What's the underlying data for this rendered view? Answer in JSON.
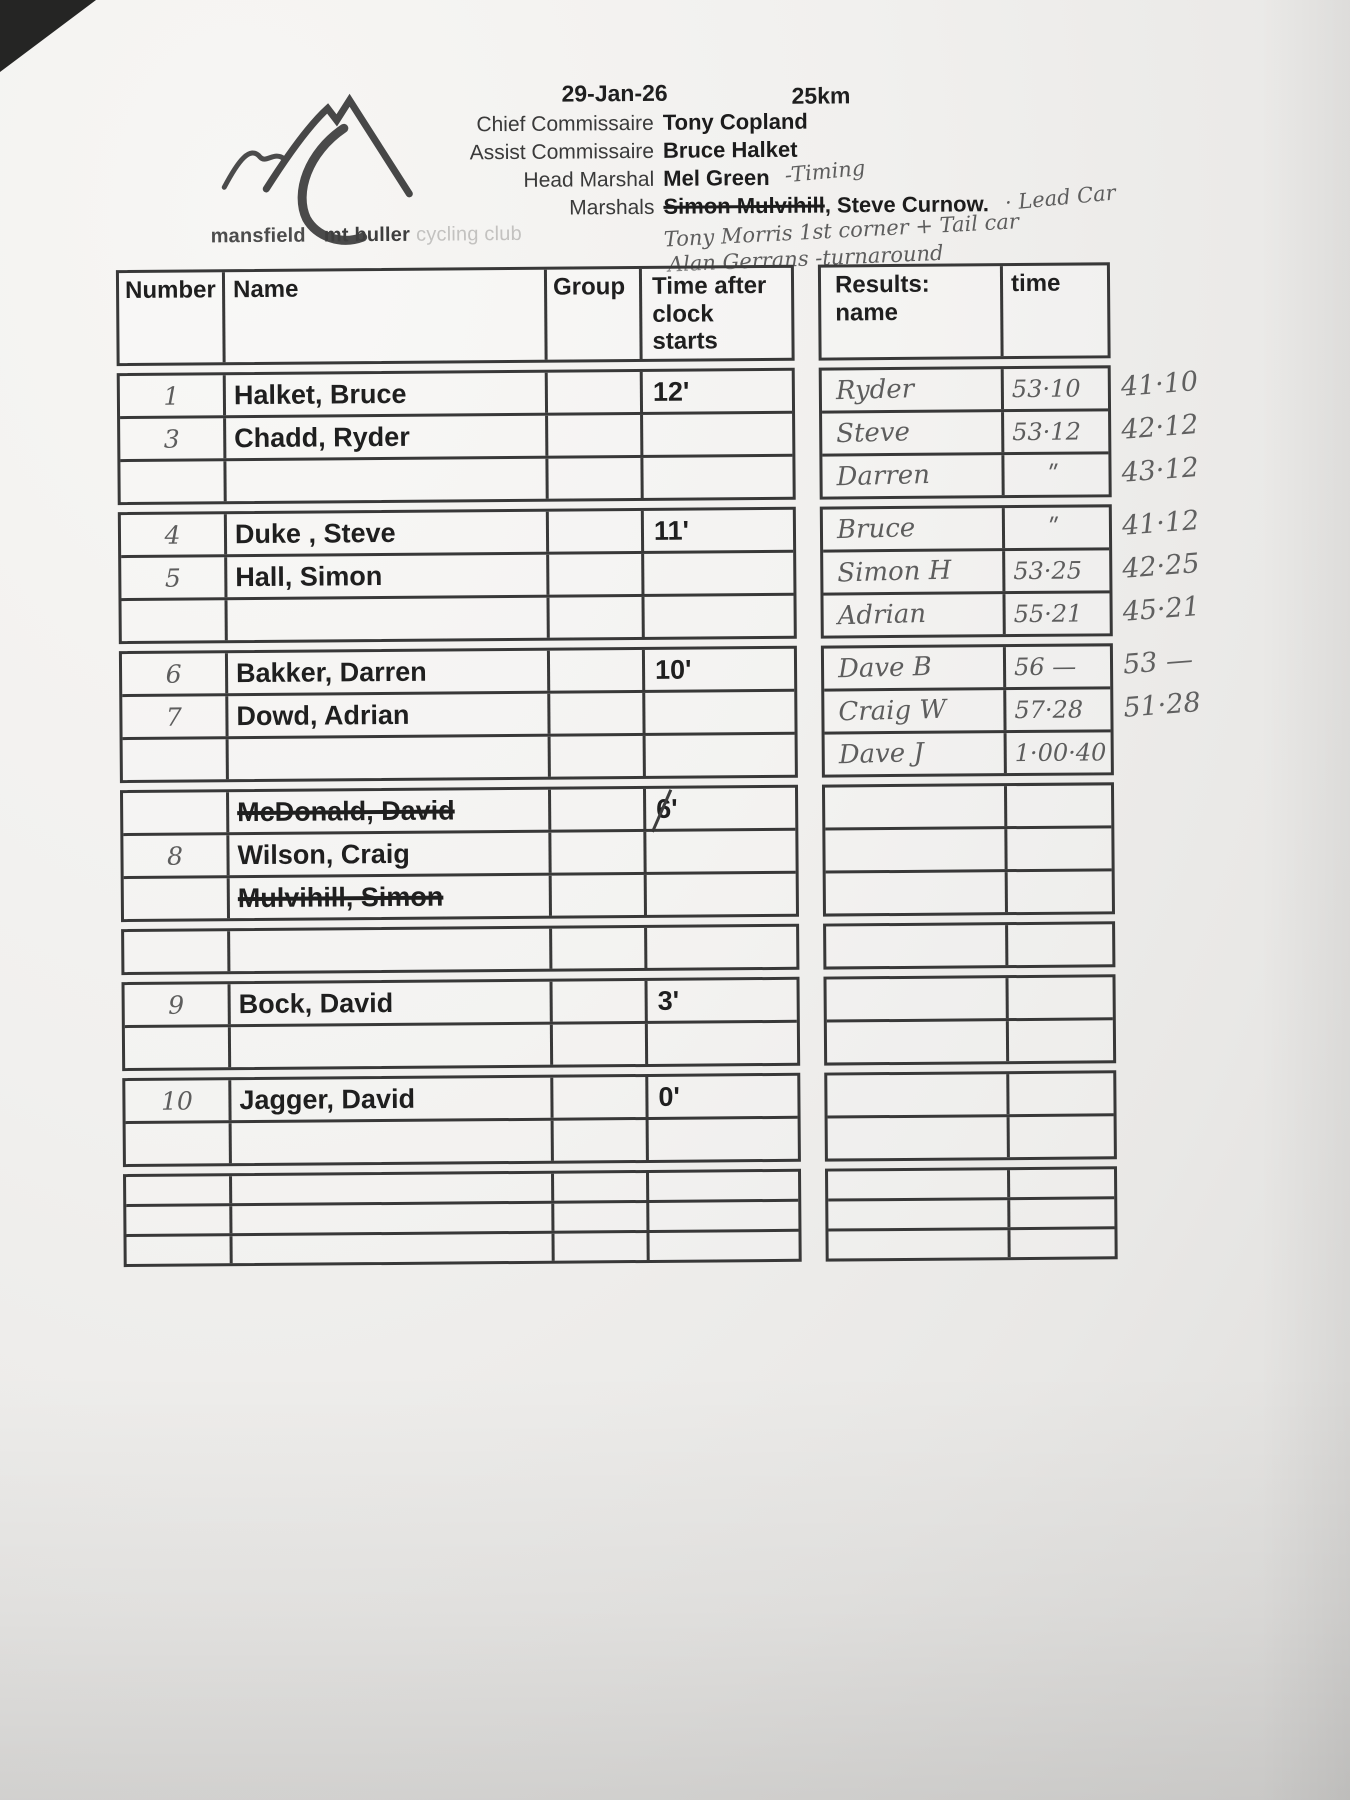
{
  "page": {
    "date": "29-Jan-26",
    "distance": "25km"
  },
  "logo": {
    "word1": "mansfield",
    "word2": "mt buller",
    "word3": "cycling club"
  },
  "officials": {
    "rows": [
      {
        "label": "Chief Commissaire",
        "name": "Tony Copland"
      },
      {
        "label": "Assist Commissaire",
        "name": "Bruce Halket"
      },
      {
        "label": "Head Marshal",
        "name": "Mel Green",
        "handwritten": "-Timing"
      },
      {
        "label": "Marshals",
        "struck": "Simon Mulvihill",
        "name": ", Steve Curnow.",
        "handwritten": "· Lead Car"
      }
    ],
    "notes": [
      "Tony Morris 1st corner + Tail car",
      "Alan Gerrans -turnaround"
    ]
  },
  "start_table": {
    "headers": {
      "number": "Number",
      "name": "Name",
      "group": "Group",
      "time": "Time after clock starts"
    },
    "groups": [
      {
        "rows": [
          {
            "number": "1",
            "name": "Halket, Bruce",
            "time": "12'"
          },
          {
            "number": "3",
            "name": "Chadd, Ryder"
          },
          {}
        ]
      },
      {
        "rows": [
          {
            "number": "4",
            "name": "Duke , Steve",
            "time": "11'"
          },
          {
            "number": "5",
            "name": "Hall, Simon"
          },
          {}
        ]
      },
      {
        "rows": [
          {
            "number": "6",
            "name": "Bakker, Darren",
            "time": "10'"
          },
          {
            "number": "7",
            "name": "Dowd, Adrian"
          },
          {}
        ]
      },
      {
        "rows": [
          {
            "name": "McDonald, David",
            "struck": true,
            "time": "6'",
            "time_slashed": true
          },
          {
            "number": "8",
            "name": "Wilson, Craig"
          },
          {
            "name": "Mulvihill, Simon",
            "struck": true
          }
        ]
      },
      {
        "rows": [
          {}
        ]
      },
      {
        "rows": [
          {
            "number": "9",
            "name": "Bock, David",
            "time": "3'"
          },
          {}
        ]
      },
      {
        "rows": [
          {
            "number": "10",
            "name": "Jagger, David",
            "time": "0'"
          },
          {}
        ]
      },
      {
        "slim": true,
        "rows": [
          {},
          {},
          {}
        ]
      }
    ]
  },
  "results_table": {
    "headers": {
      "name": "Results: name",
      "time": "time"
    },
    "groups": [
      {
        "rows": [
          {
            "name": "Ryder",
            "time": "53·10",
            "margin": "41·10"
          },
          {
            "name": "Steve",
            "time": "53·12",
            "margin": "42·12"
          },
          {
            "name": "Darren",
            "time": "ʺ",
            "margin": "43·12"
          }
        ]
      },
      {
        "rows": [
          {
            "name": "Bruce",
            "time": "ʺ",
            "margin": "41·12"
          },
          {
            "name": "Simon H",
            "time": "53·25",
            "margin": "42·25"
          },
          {
            "name": "Adrian",
            "time": "55·21",
            "margin": "45·21"
          }
        ]
      },
      {
        "rows": [
          {
            "name": "Dave B",
            "time": "56 —",
            "margin": "53 —"
          },
          {
            "name": "Craig W",
            "time": "57·28",
            "margin": "51·28"
          },
          {
            "name": "Dave J",
            "time": "1·00·40"
          }
        ]
      },
      {
        "rows": [
          {},
          {},
          {}
        ]
      },
      {
        "rows": [
          {}
        ]
      },
      {
        "rows": [
          {},
          {}
        ]
      },
      {
        "rows": [
          {},
          {}
        ]
      },
      {
        "slim": true,
        "rows": [
          {},
          {},
          {}
        ]
      }
    ]
  }
}
